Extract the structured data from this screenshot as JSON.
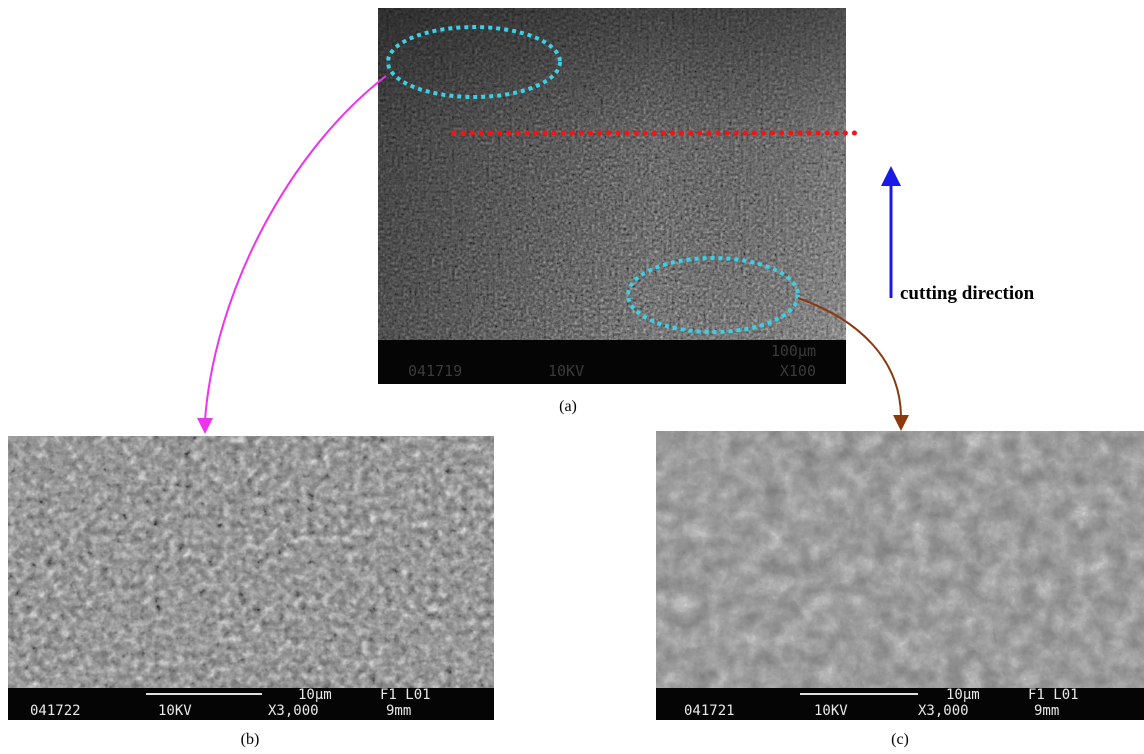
{
  "figure": {
    "panel_a": {
      "caption": "(a)",
      "databar": {
        "scale": "100µm",
        "id": "041719",
        "kv": "10KV",
        "mag": "X100"
      }
    },
    "panel_b": {
      "caption": "(b)",
      "databar": {
        "scale": "10µm",
        "code": "F1 L01",
        "id": "041722",
        "kv": "10KV",
        "mag": "X3,000",
        "wd": "9mm"
      }
    },
    "panel_c": {
      "caption": "(c)",
      "databar": {
        "scale": "10µm",
        "code": "F1 L01",
        "id": "041721",
        "kv": "10KV",
        "mag": "X3,000",
        "wd": "9mm"
      }
    },
    "annotation": {
      "cutting_direction_label": "cutting direction"
    },
    "colors": {
      "ellipse": "#3ccfe6",
      "boundary_line": "#ff1010",
      "direction_arrow": "#1a1ae6",
      "arrow_to_b": "#ee33ee",
      "arrow_to_c": "#8b3a10"
    }
  }
}
